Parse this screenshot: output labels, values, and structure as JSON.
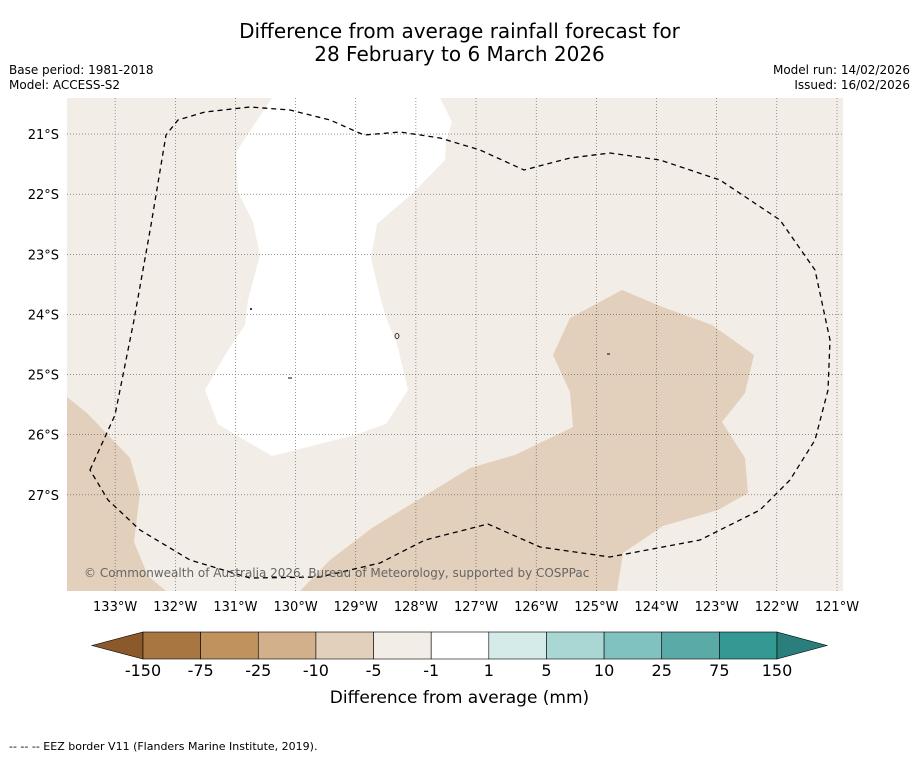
{
  "title": {
    "line1": "Difference from average rainfall forecast for",
    "line2": "28 February to 6 March 2026"
  },
  "meta": {
    "base_period": "Base period: 1981-2018",
    "model": "Model: ACCESS-S2",
    "model_run": "Model run: 14/02/2026",
    "issued": "Issued: 16/02/2026"
  },
  "map": {
    "copyright": "© Commonwealth of Australia 2026, Bureau of Meteorology, supported by COSPPac",
    "lon_range": [
      -133.8,
      -120.9
    ],
    "lat_range": [
      -28.6,
      -20.4
    ],
    "lon_labels": [
      {
        "value": -133,
        "label": "133°W"
      },
      {
        "value": -132,
        "label": "132°W"
      },
      {
        "value": -131,
        "label": "131°W"
      },
      {
        "value": -130,
        "label": "130°W"
      },
      {
        "value": -129,
        "label": "129°W"
      },
      {
        "value": -128,
        "label": "128°W"
      },
      {
        "value": -127,
        "label": "127°W"
      },
      {
        "value": -126,
        "label": "126°W"
      },
      {
        "value": -125,
        "label": "125°W"
      },
      {
        "value": -124,
        "label": "124°W"
      },
      {
        "value": -123,
        "label": "123°W"
      },
      {
        "value": -122,
        "label": "122°W"
      },
      {
        "value": -121,
        "label": "121°W"
      }
    ],
    "lat_labels": [
      {
        "value": -21,
        "label": "21°S"
      },
      {
        "value": -22,
        "label": "22°S"
      },
      {
        "value": -23,
        "label": "23°S"
      },
      {
        "value": -24,
        "label": "24°S"
      },
      {
        "value": -25,
        "label": "25°S"
      },
      {
        "value": -26,
        "label": "26°S"
      },
      {
        "value": -27,
        "label": "27°S"
      }
    ]
  },
  "colorbar": {
    "tick_labels": [
      "-150",
      "-75",
      "-25",
      "-10",
      "-5",
      "-1",
      "1",
      "5",
      "10",
      "25",
      "75",
      "150"
    ],
    "colors": [
      "#a87640",
      "#c0935e",
      "#d2b08b",
      "#e2cfbc",
      "#f3ede7",
      "#ffffff",
      "#d4ebe9",
      "#a9d7d4",
      "#80c2bf",
      "#5aaba8",
      "#349893"
    ],
    "extend_low_color": "#8c5a2a",
    "extend_high_color": "#2a7f7c",
    "label": "Difference from average (mm)"
  },
  "footnote": "--  --  -- EEZ border V11 (Flanders Marine Institute, 2019)."
}
